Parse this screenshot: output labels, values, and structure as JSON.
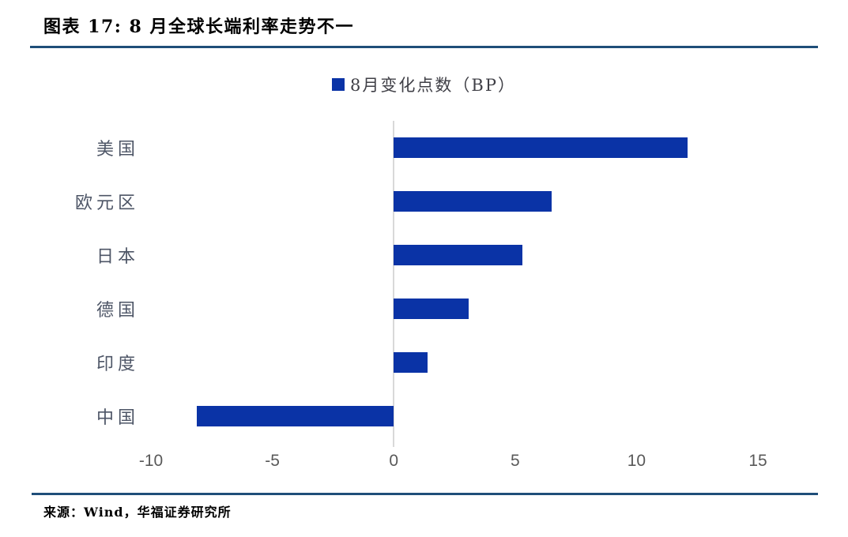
{
  "title": "图表 17: 8 月全球长端利率走势不一",
  "legend": {
    "label": "8月变化点数（BP）"
  },
  "source": "来源：Wind，华福证券研究所",
  "colors": {
    "bar": "#0a33a6",
    "rule": "#1f4e79",
    "zero_line": "#d9d9d9",
    "tick_text": "#595959",
    "category_text": "#4d5566",
    "legend_text": "#3f3f46"
  },
  "chart_data": {
    "type": "bar",
    "orientation": "horizontal",
    "title": "图表 17: 8 月全球长端利率走势不一",
    "series_name": "8月变化点数（BP）",
    "unit": "BP",
    "categories": [
      "美国",
      "欧元区",
      "日本",
      "德国",
      "印度",
      "中国"
    ],
    "values": [
      12.1,
      6.5,
      5.3,
      3.1,
      1.4,
      -8.1
    ],
    "xlim": [
      -10,
      15
    ],
    "xticks": [
      -10,
      -5,
      0,
      5,
      10,
      15
    ],
    "grid": false,
    "legend_position": "top-center"
  }
}
